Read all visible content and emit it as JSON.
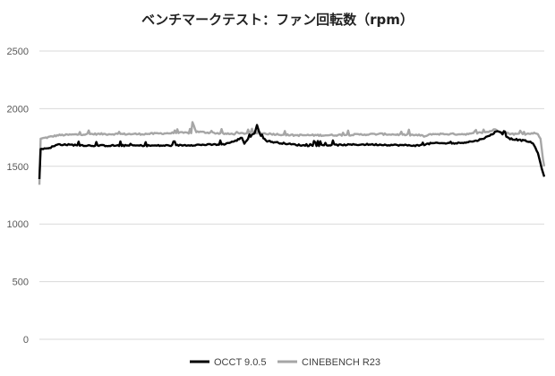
{
  "chart_data": {
    "type": "line",
    "title": "ベンチマークテスト：ファン回転数（rpm）",
    "xlabel": "",
    "ylabel": "",
    "ylim": [
      0,
      2500
    ],
    "yticks": [
      0,
      500,
      1000,
      1500,
      2000,
      2500
    ],
    "grid": true,
    "legend_position": "bottom",
    "x_points": 400,
    "series": [
      {
        "name": "OCCT 9.0.5",
        "color": "#000000",
        "keyframes": [
          [
            0,
            1390
          ],
          [
            1,
            1650
          ],
          [
            8,
            1660
          ],
          [
            15,
            1690
          ],
          [
            40,
            1680
          ],
          [
            100,
            1680
          ],
          [
            145,
            1690
          ],
          [
            155,
            1720
          ],
          [
            160,
            1750
          ],
          [
            162,
            1700
          ],
          [
            165,
            1740
          ],
          [
            170,
            1790
          ],
          [
            172,
            1860
          ],
          [
            175,
            1760
          ],
          [
            180,
            1720
          ],
          [
            185,
            1710
          ],
          [
            200,
            1690
          ],
          [
            210,
            1680
          ],
          [
            260,
            1690
          ],
          [
            300,
            1680
          ],
          [
            310,
            1700
          ],
          [
            330,
            1700
          ],
          [
            345,
            1720
          ],
          [
            350,
            1740
          ],
          [
            355,
            1760
          ],
          [
            362,
            1810
          ],
          [
            366,
            1780
          ],
          [
            372,
            1740
          ],
          [
            378,
            1730
          ],
          [
            385,
            1720
          ],
          [
            390,
            1700
          ],
          [
            394,
            1620
          ],
          [
            397,
            1480
          ],
          [
            399,
            1410
          ]
        ]
      },
      {
        "name": "CINEBENCH R23",
        "color": "#a6a6a6",
        "keyframes": [
          [
            0,
            1340
          ],
          [
            1,
            1740
          ],
          [
            6,
            1750
          ],
          [
            15,
            1770
          ],
          [
            40,
            1780
          ],
          [
            80,
            1780
          ],
          [
            110,
            1790
          ],
          [
            120,
            1790
          ],
          [
            121,
            1880
          ],
          [
            124,
            1800
          ],
          [
            150,
            1780
          ],
          [
            170,
            1790
          ],
          [
            200,
            1770
          ],
          [
            230,
            1770
          ],
          [
            270,
            1780
          ],
          [
            300,
            1770
          ],
          [
            305,
            1760
          ],
          [
            310,
            1780
          ],
          [
            340,
            1780
          ],
          [
            355,
            1800
          ],
          [
            360,
            1820
          ],
          [
            368,
            1790
          ],
          [
            375,
            1780
          ],
          [
            385,
            1780
          ],
          [
            393,
            1790
          ],
          [
            396,
            1740
          ],
          [
            398,
            1560
          ],
          [
            399,
            1500
          ]
        ]
      }
    ]
  }
}
